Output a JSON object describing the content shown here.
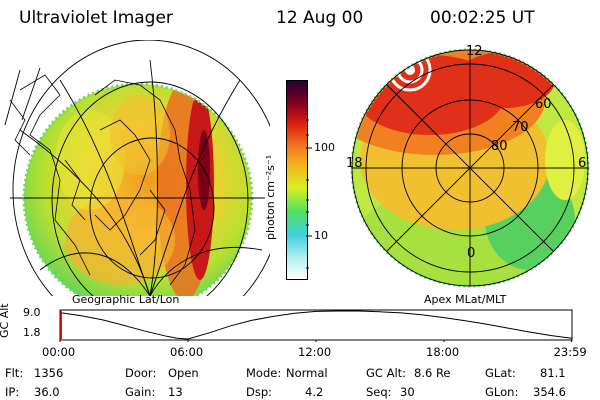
{
  "header": {
    "instrument": "Ultraviolet Imager",
    "date": "12 Aug 00",
    "time": "00:02:25 UT"
  },
  "left_panel": {
    "label": "Geographic Lat/Lon"
  },
  "right_panel": {
    "label": "Apex MLat/MLT",
    "mlt_labels": [
      "12",
      "18",
      "6",
      "0"
    ],
    "mlat_labels": [
      "60",
      "70",
      "80"
    ]
  },
  "colorbar": {
    "unit_label": "photon cm⁻²s⁻¹",
    "tick_labels": [
      "100",
      "10"
    ],
    "scale": "log",
    "colors": [
      "#ffffff",
      "#b8f0f0",
      "#40d0e0",
      "#50e060",
      "#e8f020",
      "#f0a020",
      "#e02010",
      "#8a0020",
      "#200030"
    ]
  },
  "altitude_plot": {
    "ylabel": "GC Alt",
    "yticks": [
      "9.0",
      "1.8"
    ],
    "xticks": [
      "00:00",
      "06:00",
      "12:00",
      "18:00",
      "23:59"
    ],
    "series": {
      "x_hours": [
        0,
        1,
        2,
        3,
        4,
        5,
        5.5,
        6,
        7,
        8,
        9,
        10,
        11,
        12,
        13,
        14,
        15,
        16,
        17,
        18,
        19,
        20,
        21,
        22,
        23,
        23.98
      ],
      "alt_re": [
        8.6,
        7.8,
        6.7,
        5.3,
        3.8,
        2.5,
        2.0,
        1.8,
        3.4,
        5.2,
        6.6,
        7.6,
        8.4,
        8.9,
        9.0,
        9.0,
        8.8,
        8.5,
        8.0,
        7.3,
        6.5,
        5.6,
        4.6,
        3.6,
        2.7,
        2.0
      ]
    },
    "current_time_hours": 0.04
  },
  "footer": {
    "flt_label": "Flt:",
    "flt_value": "1356",
    "ip_label": "IP:",
    "ip_value": "36.0",
    "door_label": "Door:",
    "door_value": "Open",
    "gain_label": "Gain:",
    "gain_value": "13",
    "mode_label": "Mode:",
    "mode_value": "Normal",
    "dsp_label": "Dsp:",
    "dsp_value": "4.2",
    "gcalt_label": "GC Alt:",
    "gcalt_value": "8.6 Re",
    "seq_label": "Seq:",
    "seq_value": "30",
    "glat_label": "GLat:",
    "glat_value": "81.1",
    "glon_label": "GLon:",
    "glon_value": "354.6"
  }
}
